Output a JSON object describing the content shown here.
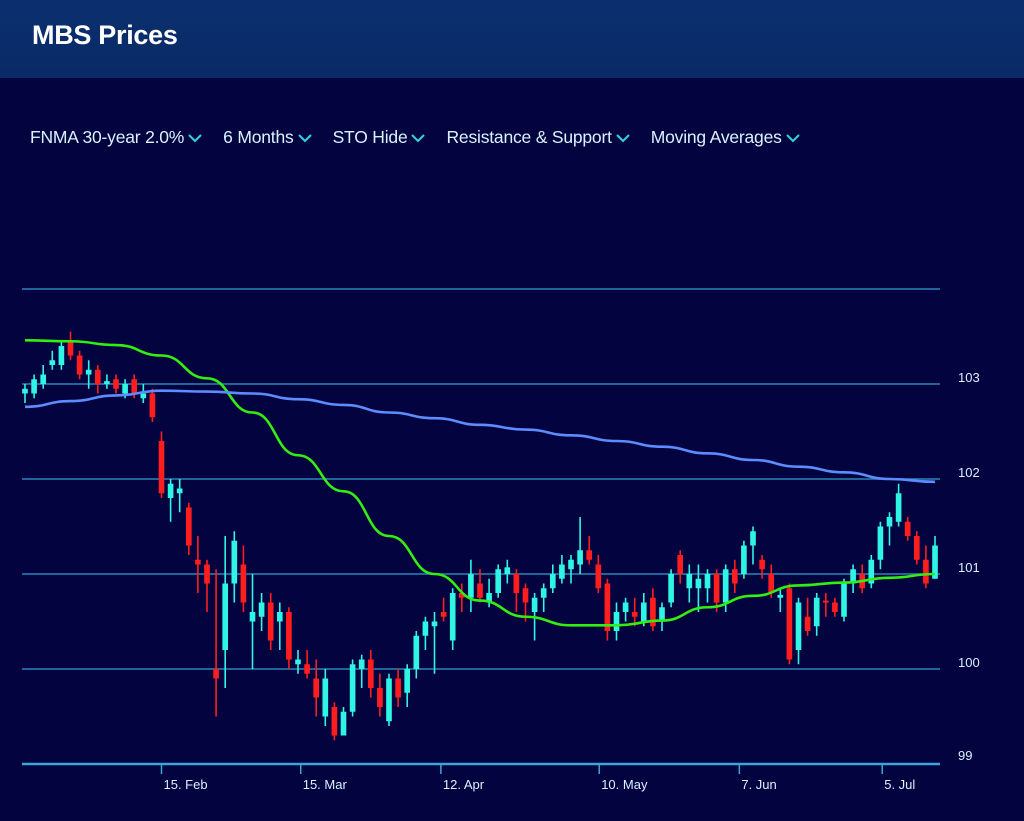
{
  "header": {
    "title": "MBS Prices"
  },
  "toolbar": [
    {
      "label": "FNMA 30-year 2.0%",
      "icon": "chevron-down-icon"
    },
    {
      "label": "6 Months",
      "icon": "chevron-down-icon"
    },
    {
      "label": "STO Hide",
      "icon": "chevron-down-icon"
    },
    {
      "label": "Resistance & Support",
      "icon": "chevron-down-icon"
    },
    {
      "label": "Moving Averages",
      "icon": "chevron-down-icon"
    }
  ],
  "colors": {
    "up": "#2ff5e5",
    "down": "#ff1d1d",
    "fast_ma": "#33ee11",
    "slow_ma": "#5c8cff",
    "grid": "#2a86b8",
    "background": "#03033f"
  },
  "chart_data": {
    "type": "candlestick",
    "title": "MBS Prices",
    "ylim": [
      99,
      104
    ],
    "y_ticks": [
      {
        "value": 103,
        "label": "103"
      },
      {
        "value": 102,
        "label": "102"
      },
      {
        "value": 101,
        "label": "101"
      },
      {
        "value": 100,
        "label": "100"
      },
      {
        "value": 99,
        "label": "99"
      }
    ],
    "x_ticks": [
      {
        "index": 15,
        "label": "15. Feb"
      },
      {
        "index": 30.3,
        "label": "15. Mar"
      },
      {
        "index": 45.7,
        "label": "12. Apr"
      },
      {
        "index": 63.1,
        "label": "10. May"
      },
      {
        "index": 78.5,
        "label": "7. Jun"
      },
      {
        "index": 94.2,
        "label": "5. Jul"
      }
    ],
    "grid": true,
    "candles_ohlc": [
      [
        102.9,
        103.0,
        102.8,
        102.95
      ],
      [
        102.9,
        103.1,
        102.85,
        103.05
      ],
      [
        103.0,
        103.2,
        102.95,
        103.1
      ],
      [
        103.2,
        103.35,
        103.15,
        103.25
      ],
      [
        103.2,
        103.45,
        103.15,
        103.4
      ],
      [
        103.45,
        103.55,
        103.25,
        103.3
      ],
      [
        103.3,
        103.35,
        103.05,
        103.1
      ],
      [
        103.1,
        103.25,
        102.95,
        103.15
      ],
      [
        103.15,
        103.2,
        102.9,
        103.0
      ],
      [
        103.0,
        103.1,
        102.95,
        103.03
      ],
      [
        103.05,
        103.1,
        102.9,
        102.95
      ],
      [
        102.9,
        103.05,
        102.85,
        103.0
      ],
      [
        103.05,
        103.1,
        102.85,
        102.9
      ],
      [
        102.85,
        103.0,
        102.8,
        102.9
      ],
      [
        102.9,
        102.95,
        102.6,
        102.65
      ],
      [
        102.4,
        102.5,
        101.8,
        101.85
      ],
      [
        101.8,
        102.0,
        101.55,
        101.95
      ],
      [
        101.85,
        102.0,
        101.65,
        101.9
      ],
      [
        101.7,
        101.75,
        101.2,
        101.3
      ],
      [
        101.15,
        101.4,
        100.8,
        101.1
      ],
      [
        101.1,
        101.15,
        100.6,
        100.9
      ],
      [
        100.0,
        101.05,
        99.5,
        99.9
      ],
      [
        100.2,
        101.4,
        99.8,
        100.9
      ],
      [
        100.9,
        101.45,
        100.7,
        101.35
      ],
      [
        101.1,
        101.3,
        100.6,
        100.7
      ],
      [
        100.5,
        101.0,
        100.0,
        100.6
      ],
      [
        100.55,
        100.8,
        100.4,
        100.7
      ],
      [
        100.7,
        100.8,
        100.2,
        100.3
      ],
      [
        100.5,
        100.7,
        100.2,
        100.6
      ],
      [
        100.6,
        100.65,
        100.0,
        100.1
      ],
      [
        100.05,
        100.2,
        99.95,
        100.1
      ],
      [
        100.05,
        100.2,
        99.9,
        99.95
      ],
      [
        99.9,
        100.1,
        99.5,
        99.7
      ],
      [
        99.5,
        100.0,
        99.4,
        99.9
      ],
      [
        99.6,
        99.65,
        99.25,
        99.3
      ],
      [
        99.3,
        99.6,
        99.3,
        99.55
      ],
      [
        99.55,
        100.1,
        99.5,
        100.05
      ],
      [
        100.0,
        100.15,
        99.8,
        100.1
      ],
      [
        100.1,
        100.2,
        99.7,
        99.8
      ],
      [
        99.8,
        99.95,
        99.5,
        99.6
      ],
      [
        99.45,
        99.95,
        99.4,
        99.9
      ],
      [
        99.9,
        100.0,
        99.6,
        99.7
      ],
      [
        99.75,
        100.05,
        99.6,
        100.0
      ],
      [
        100.0,
        100.4,
        99.9,
        100.35
      ],
      [
        100.35,
        100.55,
        100.2,
        100.5
      ],
      [
        100.45,
        100.6,
        99.95,
        100.5
      ],
      [
        100.6,
        100.75,
        100.5,
        100.55
      ],
      [
        100.3,
        100.85,
        100.2,
        100.8
      ],
      [
        100.8,
        100.9,
        100.6,
        100.75
      ],
      [
        100.75,
        101.15,
        100.6,
        101.0
      ],
      [
        100.9,
        101.05,
        100.7,
        100.75
      ],
      [
        100.7,
        100.95,
        100.65,
        100.8
      ],
      [
        100.8,
        101.1,
        100.75,
        101.05
      ],
      [
        101.0,
        101.15,
        100.9,
        101.07
      ],
      [
        101.0,
        101.05,
        100.6,
        100.8
      ],
      [
        100.85,
        100.9,
        100.5,
        100.7
      ],
      [
        100.6,
        100.8,
        100.3,
        100.75
      ],
      [
        100.75,
        100.9,
        100.6,
        100.85
      ],
      [
        100.85,
        101.1,
        100.8,
        101.0
      ],
      [
        100.95,
        101.2,
        100.9,
        101.1
      ],
      [
        101.05,
        101.2,
        100.9,
        101.15
      ],
      [
        101.1,
        101.6,
        101.0,
        101.25
      ],
      [
        101.25,
        101.4,
        101.1,
        101.15
      ],
      [
        101.1,
        101.2,
        100.8,
        100.85
      ],
      [
        100.9,
        100.95,
        100.3,
        100.4
      ],
      [
        100.4,
        100.7,
        100.3,
        100.6
      ],
      [
        100.6,
        100.75,
        100.5,
        100.7
      ],
      [
        100.6,
        100.75,
        100.45,
        100.55
      ],
      [
        100.5,
        100.8,
        100.45,
        100.7
      ],
      [
        100.75,
        100.85,
        100.4,
        100.45
      ],
      [
        100.5,
        100.7,
        100.4,
        100.65
      ],
      [
        100.7,
        101.05,
        100.65,
        101.0
      ],
      [
        101.2,
        101.25,
        100.9,
        101.0
      ],
      [
        100.85,
        101.1,
        100.7,
        101.0
      ],
      [
        100.85,
        101.1,
        100.6,
        100.95
      ],
      [
        100.85,
        101.05,
        100.7,
        101.0
      ],
      [
        101.0,
        101.05,
        100.6,
        100.7
      ],
      [
        100.7,
        101.1,
        100.6,
        101.05
      ],
      [
        101.05,
        101.15,
        100.8,
        100.9
      ],
      [
        101.0,
        101.35,
        100.95,
        101.3
      ],
      [
        101.3,
        101.5,
        101.1,
        101.45
      ],
      [
        101.15,
        101.2,
        100.95,
        101.05
      ],
      [
        101.0,
        101.1,
        100.75,
        100.8
      ],
      [
        100.75,
        100.85,
        100.6,
        100.78
      ],
      [
        100.85,
        100.9,
        100.05,
        100.1
      ],
      [
        100.2,
        100.75,
        100.05,
        100.7
      ],
      [
        100.55,
        100.75,
        100.35,
        100.4
      ],
      [
        100.45,
        100.8,
        100.35,
        100.75
      ],
      [
        100.72,
        100.8,
        100.55,
        100.7
      ],
      [
        100.7,
        100.75,
        100.55,
        100.6
      ],
      [
        100.55,
        100.95,
        100.5,
        100.9
      ],
      [
        100.9,
        101.1,
        100.8,
        101.05
      ],
      [
        101.0,
        101.1,
        100.8,
        100.85
      ],
      [
        100.9,
        101.2,
        100.85,
        101.15
      ],
      [
        101.15,
        101.55,
        101.05,
        101.5
      ],
      [
        101.5,
        101.65,
        101.3,
        101.6
      ],
      [
        101.55,
        101.95,
        101.5,
        101.85
      ],
      [
        101.55,
        101.6,
        101.35,
        101.4
      ],
      [
        101.4,
        101.45,
        101.1,
        101.15
      ],
      [
        101.15,
        101.3,
        100.85,
        100.9
      ],
      [
        100.95,
        101.4,
        100.95,
        101.3
      ]
    ],
    "moving_averages": [
      {
        "name": "fast",
        "sample_every": 5,
        "values": [
          103.46,
          103.45,
          103.41,
          103.3,
          103.06,
          102.7,
          102.25,
          101.87,
          101.4,
          101.0,
          100.72,
          100.55,
          100.46,
          100.46,
          100.51,
          100.65,
          100.77,
          100.88,
          100.91,
          100.96,
          101.0
        ]
      },
      {
        "name": "slow",
        "sample_every": 5,
        "values": [
          102.76,
          102.82,
          102.88,
          102.93,
          102.92,
          102.9,
          102.84,
          102.78,
          102.7,
          102.64,
          102.57,
          102.52,
          102.46,
          102.4,
          102.34,
          102.27,
          102.2,
          102.13,
          102.07,
          102.0,
          101.97
        ]
      }
    ],
    "resistance_support_lines": [
      104,
      103,
      102,
      101,
      100
    ]
  }
}
